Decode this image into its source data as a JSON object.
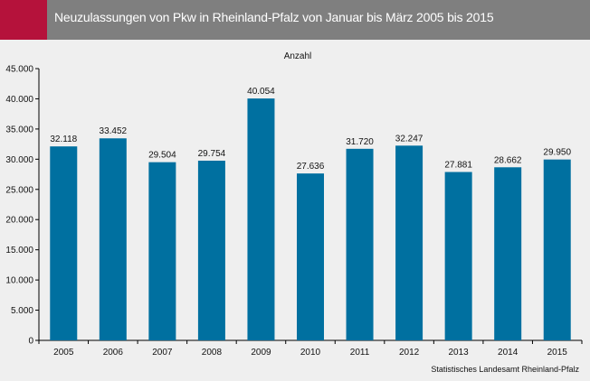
{
  "header": {
    "title": "Neuzulassungen von Pkw in Rheinland-Pfalz von Januar bis März 2005 bis 2015",
    "accent_color": "#b5123b",
    "background_color": "#7f7f7f"
  },
  "chart_data": {
    "type": "bar",
    "title": "",
    "ylabel": "Anzahl",
    "xlabel": "",
    "categories": [
      "2005",
      "2006",
      "2007",
      "2008",
      "2009",
      "2010",
      "2011",
      "2012",
      "2013",
      "2014",
      "2015"
    ],
    "values": [
      32118,
      33452,
      29504,
      29754,
      40054,
      27636,
      31720,
      32247,
      27881,
      28662,
      29950
    ],
    "value_labels": [
      "32.118",
      "33.452",
      "29.504",
      "29.754",
      "40.054",
      "27.636",
      "31.720",
      "32.247",
      "27.881",
      "28.662",
      "29.950"
    ],
    "yticks": [
      0,
      5000,
      10000,
      15000,
      20000,
      25000,
      30000,
      35000,
      40000,
      45000
    ],
    "ytick_labels": [
      "0",
      "5.000",
      "10.000",
      "15.000",
      "20.000",
      "25.000",
      "30.000",
      "35.000",
      "40.000",
      "45.000"
    ],
    "ylim": [
      0,
      45000
    ],
    "grid": false,
    "bar_color": "#0070a0"
  },
  "footer": {
    "source": "Statistisches Landesamt Rheinland-Pfalz"
  }
}
